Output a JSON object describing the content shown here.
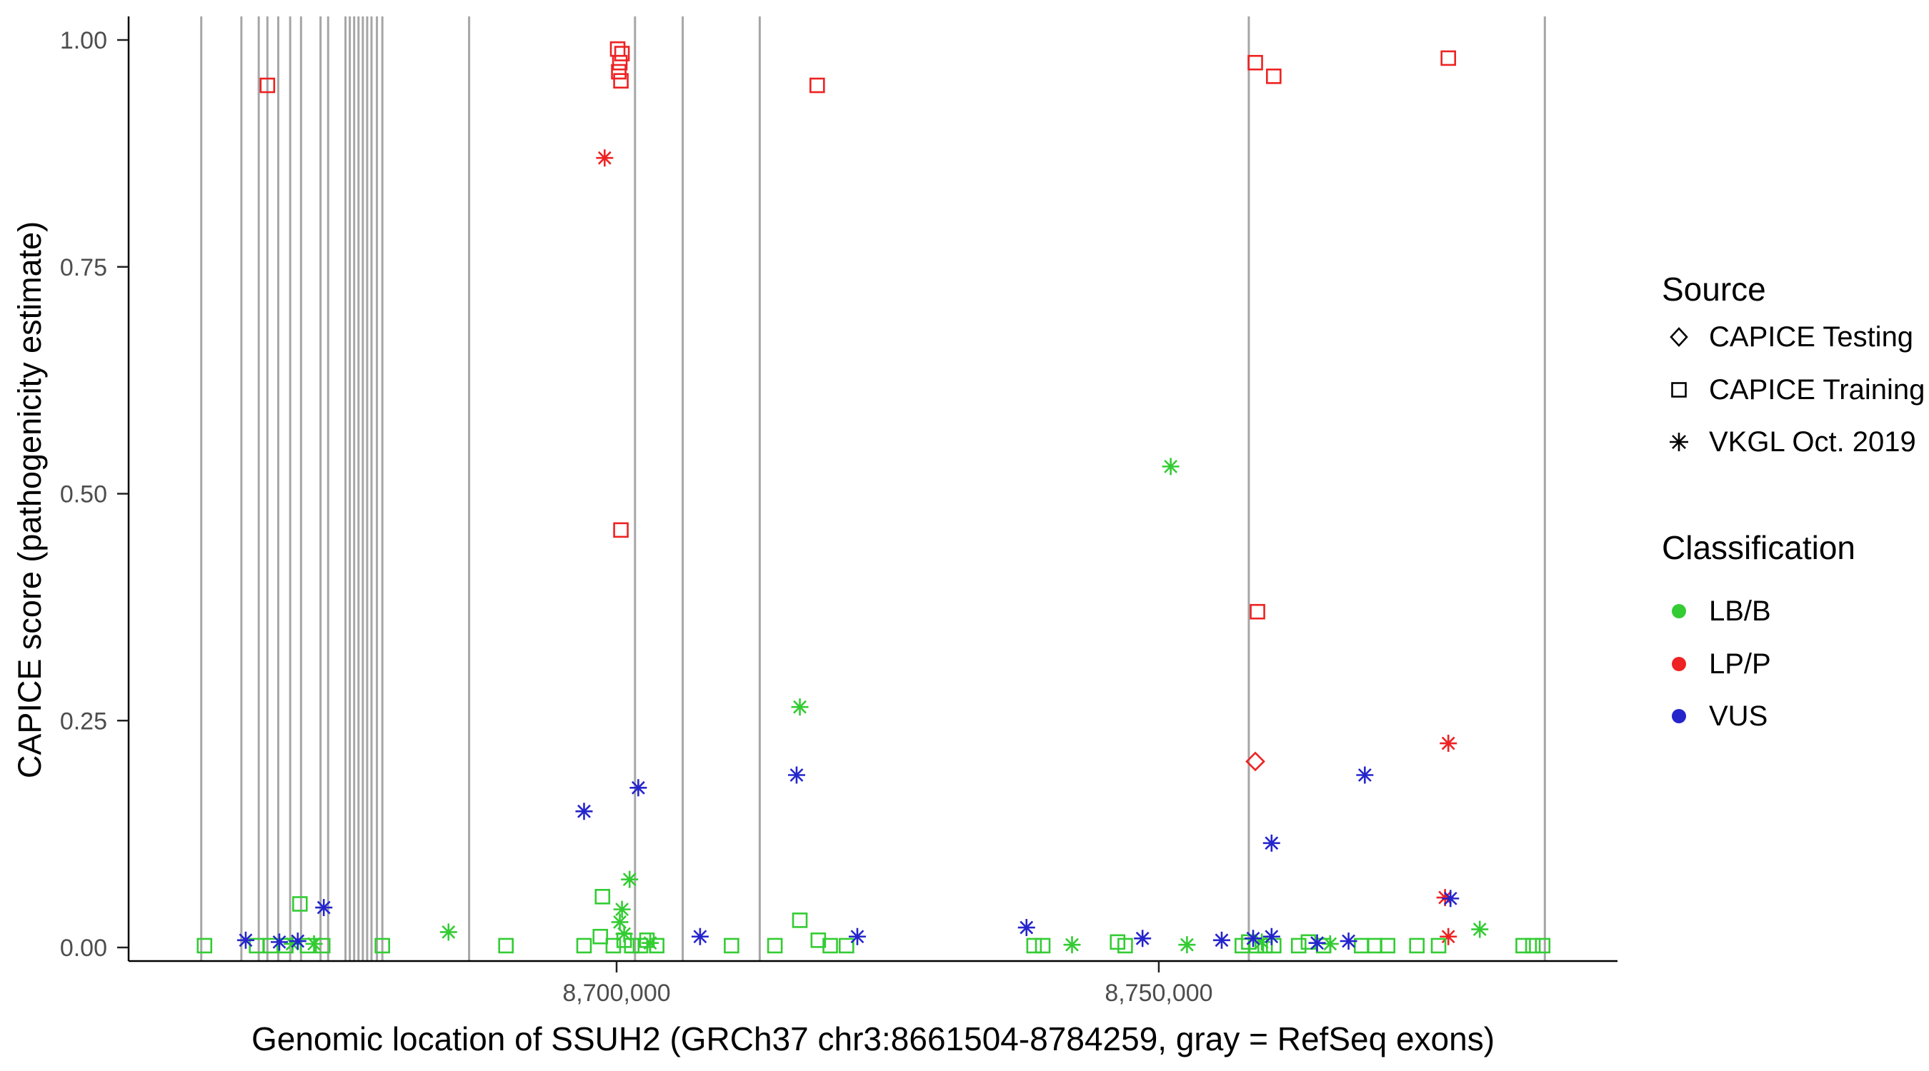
{
  "colors": {
    "LB/B": "#33cc33",
    "LP/P": "#ee2222",
    "VUS": "#2525cc",
    "exon_line": "#a6a6a6",
    "axis_line": "#000000",
    "tick_label": "#4d4d4d"
  },
  "legend": {
    "source": {
      "title": "Source",
      "items": [
        {
          "label": "CAPICE Testing",
          "symbol": "diamond"
        },
        {
          "label": "CAPICE Training",
          "symbol": "square"
        },
        {
          "label": "VKGL Oct. 2019",
          "symbol": "asterisk"
        }
      ]
    },
    "classification": {
      "title": "Classification",
      "items": [
        {
          "label": "LB/B",
          "color": "#33cc33"
        },
        {
          "label": "LP/P",
          "color": "#ee2222"
        },
        {
          "label": "VUS",
          "color": "#2525cc"
        }
      ]
    }
  },
  "chart_data": {
    "type": "scatter",
    "title": "",
    "xlabel": "Genomic location of SSUH2 (GRCh37 chr3:8661504-8784259, gray = RefSeq exons)",
    "ylabel": "CAPICE score (pathogenicity estimate)",
    "x_domain": [
      8655000,
      8792300
    ],
    "y_domain": [
      -0.02,
      1.04
    ],
    "grid": false,
    "legend_position": "right",
    "x_ticks": [
      {
        "value": 8700000,
        "label": "8,700,000"
      },
      {
        "value": 8750000,
        "label": "8,750,000"
      }
    ],
    "y_ticks": [
      {
        "value": 0.0,
        "label": "0.00"
      },
      {
        "value": 0.25,
        "label": "0.25"
      },
      {
        "value": 0.5,
        "label": "0.50"
      },
      {
        "value": 0.75,
        "label": "0.75"
      },
      {
        "value": 1.0,
        "label": "1.00"
      }
    ],
    "exon_lines": [
      8661700,
      8665400,
      8667000,
      8667800,
      8668800,
      8669900,
      8670900,
      8672700,
      8673400,
      8675000,
      8675400,
      8675800,
      8676200,
      8676600,
      8677000,
      8677400,
      8677900,
      8678400,
      8686400,
      8701700,
      8706100,
      8713200,
      8758300,
      8785600
    ],
    "points_columns": [
      "x",
      "y",
      "source",
      "classification"
    ],
    "points": [
      [
        8667800,
        0.95,
        "training",
        "LP/P"
      ],
      [
        8700100,
        0.99,
        "training",
        "LP/P"
      ],
      [
        8700500,
        0.985,
        "training",
        "LP/P"
      ],
      [
        8700300,
        0.975,
        "training",
        "LP/P"
      ],
      [
        8700200,
        0.965,
        "training",
        "LP/P"
      ],
      [
        8700400,
        0.955,
        "training",
        "LP/P"
      ],
      [
        8718500,
        0.95,
        "training",
        "LP/P"
      ],
      [
        8758900,
        0.975,
        "training",
        "LP/P"
      ],
      [
        8760600,
        0.96,
        "training",
        "LP/P"
      ],
      [
        8776700,
        0.98,
        "training",
        "LP/P"
      ],
      [
        8700400,
        0.46,
        "training",
        "LP/P"
      ],
      [
        8759100,
        0.37,
        "training",
        "LP/P"
      ],
      [
        8758900,
        0.205,
        "testing",
        "LP/P"
      ],
      [
        8698900,
        0.87,
        "vkgl",
        "LP/P"
      ],
      [
        8776700,
        0.225,
        "vkgl",
        "LP/P"
      ],
      [
        8776400,
        0.055,
        "vkgl",
        "LP/P"
      ],
      [
        8776700,
        0.012,
        "vkgl",
        "LP/P"
      ],
      [
        8751100,
        0.53,
        "vkgl",
        "LB/B"
      ],
      [
        8716900,
        0.265,
        "vkgl",
        "LB/B"
      ],
      [
        8701200,
        0.075,
        "vkgl",
        "LB/B"
      ],
      [
        8700500,
        0.042,
        "vkgl",
        "LB/B"
      ],
      [
        8700300,
        0.028,
        "vkgl",
        "LB/B"
      ],
      [
        8700700,
        0.015,
        "vkgl",
        "LB/B"
      ],
      [
        8684500,
        0.017,
        "vkgl",
        "LB/B"
      ],
      [
        8670100,
        0.004,
        "vkgl",
        "LB/B"
      ],
      [
        8672100,
        0.004,
        "vkgl",
        "LB/B"
      ],
      [
        8703100,
        0.005,
        "vkgl",
        "LB/B"
      ],
      [
        8742000,
        0.003,
        "vkgl",
        "LB/B"
      ],
      [
        8752600,
        0.003,
        "vkgl",
        "LB/B"
      ],
      [
        8759500,
        0.006,
        "vkgl",
        "LB/B"
      ],
      [
        8765800,
        0.004,
        "vkgl",
        "LB/B"
      ],
      [
        8779600,
        0.02,
        "vkgl",
        "LB/B"
      ],
      [
        8662000,
        0.002,
        "training",
        "LB/B"
      ],
      [
        8666800,
        0.002,
        "training",
        "LB/B"
      ],
      [
        8668100,
        0.002,
        "training",
        "LB/B"
      ],
      [
        8669500,
        0.002,
        "training",
        "LB/B"
      ],
      [
        8671500,
        0.002,
        "training",
        "LB/B"
      ],
      [
        8672900,
        0.002,
        "training",
        "LB/B"
      ],
      [
        8670800,
        0.048,
        "training",
        "LB/B"
      ],
      [
        8678400,
        0.002,
        "training",
        "LB/B"
      ],
      [
        8689800,
        0.002,
        "training",
        "LB/B"
      ],
      [
        8697000,
        0.002,
        "training",
        "LB/B"
      ],
      [
        8698700,
        0.056,
        "training",
        "LB/B"
      ],
      [
        8698500,
        0.012,
        "training",
        "LB/B"
      ],
      [
        8699700,
        0.002,
        "training",
        "LB/B"
      ],
      [
        8700700,
        0.008,
        "training",
        "LB/B"
      ],
      [
        8701400,
        0.002,
        "training",
        "LB/B"
      ],
      [
        8702200,
        0.002,
        "training",
        "LB/B"
      ],
      [
        8702800,
        0.008,
        "training",
        "LB/B"
      ],
      [
        8703700,
        0.002,
        "training",
        "LB/B"
      ],
      [
        8710600,
        0.002,
        "training",
        "LB/B"
      ],
      [
        8714600,
        0.002,
        "training",
        "LB/B"
      ],
      [
        8716900,
        0.03,
        "training",
        "LB/B"
      ],
      [
        8718600,
        0.008,
        "training",
        "LB/B"
      ],
      [
        8719700,
        0.002,
        "training",
        "LB/B"
      ],
      [
        8721200,
        0.002,
        "training",
        "LB/B"
      ],
      [
        8738500,
        0.002,
        "training",
        "LB/B"
      ],
      [
        8739300,
        0.002,
        "training",
        "LB/B"
      ],
      [
        8746200,
        0.006,
        "training",
        "LB/B"
      ],
      [
        8746900,
        0.002,
        "training",
        "LB/B"
      ],
      [
        8757700,
        0.002,
        "training",
        "LB/B"
      ],
      [
        8758300,
        0.006,
        "training",
        "LB/B"
      ],
      [
        8759000,
        0.002,
        "training",
        "LB/B"
      ],
      [
        8759800,
        0.002,
        "training",
        "LB/B"
      ],
      [
        8760600,
        0.002,
        "training",
        "LB/B"
      ],
      [
        8762900,
        0.002,
        "training",
        "LB/B"
      ],
      [
        8763800,
        0.006,
        "training",
        "LB/B"
      ],
      [
        8765200,
        0.002,
        "training",
        "LB/B"
      ],
      [
        8768700,
        0.002,
        "training",
        "LB/B"
      ],
      [
        8769900,
        0.002,
        "training",
        "LB/B"
      ],
      [
        8771100,
        0.002,
        "training",
        "LB/B"
      ],
      [
        8773800,
        0.002,
        "training",
        "LB/B"
      ],
      [
        8775800,
        0.002,
        "training",
        "LB/B"
      ],
      [
        8783600,
        0.002,
        "training",
        "LB/B"
      ],
      [
        8784500,
        0.002,
        "training",
        "LB/B"
      ],
      [
        8785400,
        0.002,
        "training",
        "LB/B"
      ],
      [
        8665800,
        0.008,
        "vkgl",
        "VUS"
      ],
      [
        8668900,
        0.006,
        "vkgl",
        "VUS"
      ],
      [
        8670600,
        0.007,
        "vkgl",
        "VUS"
      ],
      [
        8673000,
        0.044,
        "vkgl",
        "VUS"
      ],
      [
        8697000,
        0.15,
        "vkgl",
        "VUS"
      ],
      [
        8702000,
        0.176,
        "vkgl",
        "VUS"
      ],
      [
        8707700,
        0.012,
        "vkgl",
        "VUS"
      ],
      [
        8716600,
        0.19,
        "vkgl",
        "VUS"
      ],
      [
        8722200,
        0.012,
        "vkgl",
        "VUS"
      ],
      [
        8737800,
        0.022,
        "vkgl",
        "VUS"
      ],
      [
        8748500,
        0.01,
        "vkgl",
        "VUS"
      ],
      [
        8755800,
        0.008,
        "vkgl",
        "VUS"
      ],
      [
        8758700,
        0.01,
        "vkgl",
        "VUS"
      ],
      [
        8760400,
        0.115,
        "vkgl",
        "VUS"
      ],
      [
        8760400,
        0.012,
        "vkgl",
        "VUS"
      ],
      [
        8764600,
        0.005,
        "vkgl",
        "VUS"
      ],
      [
        8767500,
        0.007,
        "vkgl",
        "VUS"
      ],
      [
        8769000,
        0.19,
        "vkgl",
        "VUS"
      ],
      [
        8776900,
        0.054,
        "vkgl",
        "VUS"
      ]
    ]
  }
}
